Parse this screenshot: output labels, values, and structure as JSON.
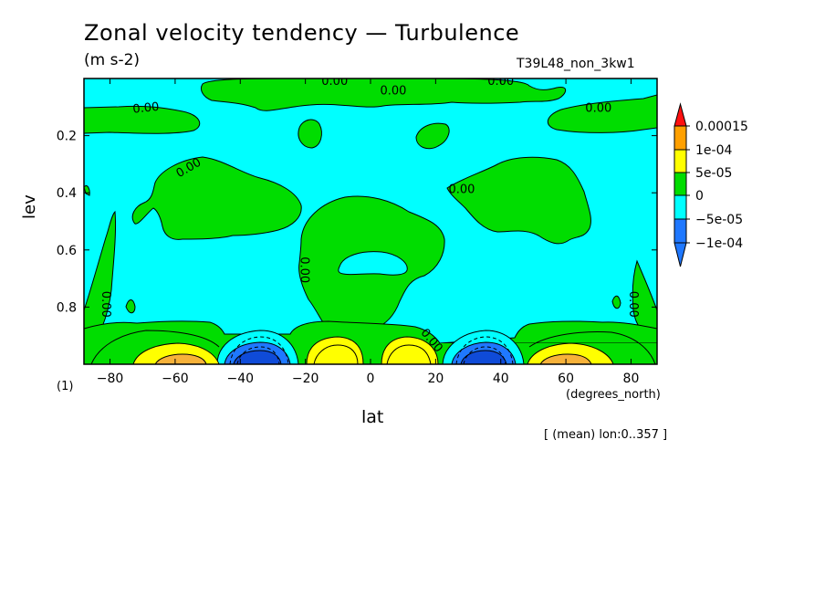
{
  "header": {
    "title": "Zonal velocity tendency — Turbulence",
    "units": "(m s-2)",
    "run_id": "T39L48_non_3kw1"
  },
  "footer": {
    "figure_index": "(1)",
    "mean_note": "[ (mean) lon:0..357 ]"
  },
  "colors": {
    "c_neg2": "#1f78ff",
    "c_neg1": "#00ffff",
    "c_0": "#00dd00",
    "c_pos1": "#ffff00",
    "c_pos2": "#ffa000",
    "c_pos3": "#ff1010",
    "cold_core": "#0f4bd8",
    "warm_core": "#f7b23a"
  },
  "chart_data": {
    "type": "heatmap",
    "title": "Zonal velocity tendency — Turbulence",
    "subtitle": "(m s-2)",
    "xlabel": "lat",
    "xunits": "(degrees_north)",
    "ylabel": "lev",
    "xlim": [
      -88,
      88
    ],
    "ylim": [
      0.0,
      1.0
    ],
    "yaxis_reversed": true,
    "xticks": [
      -80,
      -60,
      -40,
      -20,
      0,
      20,
      40,
      60,
      80
    ],
    "yticks": [
      0.2,
      0.4,
      0.6,
      0.8
    ],
    "colorbar": {
      "labels": [
        "0.00015",
        "1e-04",
        "5e-05",
        "0",
        "−5e-05",
        "−1e-04"
      ],
      "levels": [
        -0.0001,
        -5e-05,
        0,
        5e-05,
        0.0001,
        0.00015
      ]
    },
    "contour_labels": [
      {
        "text": "0.00",
        "lat": -69,
        "lev": 0.1,
        "rot": -6
      },
      {
        "text": "0.00",
        "lat": -11,
        "lev": 0.006,
        "rot": 0
      },
      {
        "text": "0.00",
        "lat": 7,
        "lev": 0.04,
        "rot": 0
      },
      {
        "text": "0.00",
        "lat": 40,
        "lev": 0.006,
        "rot": 0
      },
      {
        "text": "0.00",
        "lat": 70,
        "lev": 0.1,
        "rot": 0
      },
      {
        "text": "0.00",
        "lat": -56,
        "lev": 0.31,
        "rot": -30
      },
      {
        "text": "0.00",
        "lat": 28,
        "lev": 0.385,
        "rot": 0
      },
      {
        "text": "0.00",
        "lat": -20,
        "lev": 0.67,
        "rot": 90
      },
      {
        "text": "0.00",
        "lat": -81,
        "lev": 0.79,
        "rot": 90
      },
      {
        "text": "0.00",
        "lat": 81,
        "lev": 0.79,
        "rot": 90
      },
      {
        "text": "0.00",
        "lat": 19,
        "lev": 0.915,
        "rot": 50
      }
    ],
    "features": [
      {
        "id": "bottom-band",
        "value_range": "0 to 5e-05",
        "lat_range": [
          -88,
          88
        ],
        "lev_range": [
          0.84,
          1.0
        ]
      },
      {
        "id": "neg-core-sh",
        "value_range": "below -1e-04",
        "lat_center": -35,
        "lev_center": 0.97
      },
      {
        "id": "neg-core-nh",
        "value_range": "below -1e-04",
        "lat_center": 35,
        "lev_center": 0.97
      },
      {
        "id": "pos-core-sh-high",
        "value_range": "5e-05 to 1e-04",
        "lat_center": -58,
        "lev_center": 0.97
      },
      {
        "id": "pos-core-nh-high",
        "value_range": "5e-05 to 1e-04",
        "lat_center": 58,
        "lev_center": 0.97
      },
      {
        "id": "pos-core-sh-low",
        "value_range": "5e-05 to 1e-04",
        "lat_center": -10,
        "lev_center": 0.96
      },
      {
        "id": "pos-core-nh-low",
        "value_range": "5e-05 to 1e-04",
        "lat_center": 10,
        "lev_center": 0.96
      }
    ]
  }
}
